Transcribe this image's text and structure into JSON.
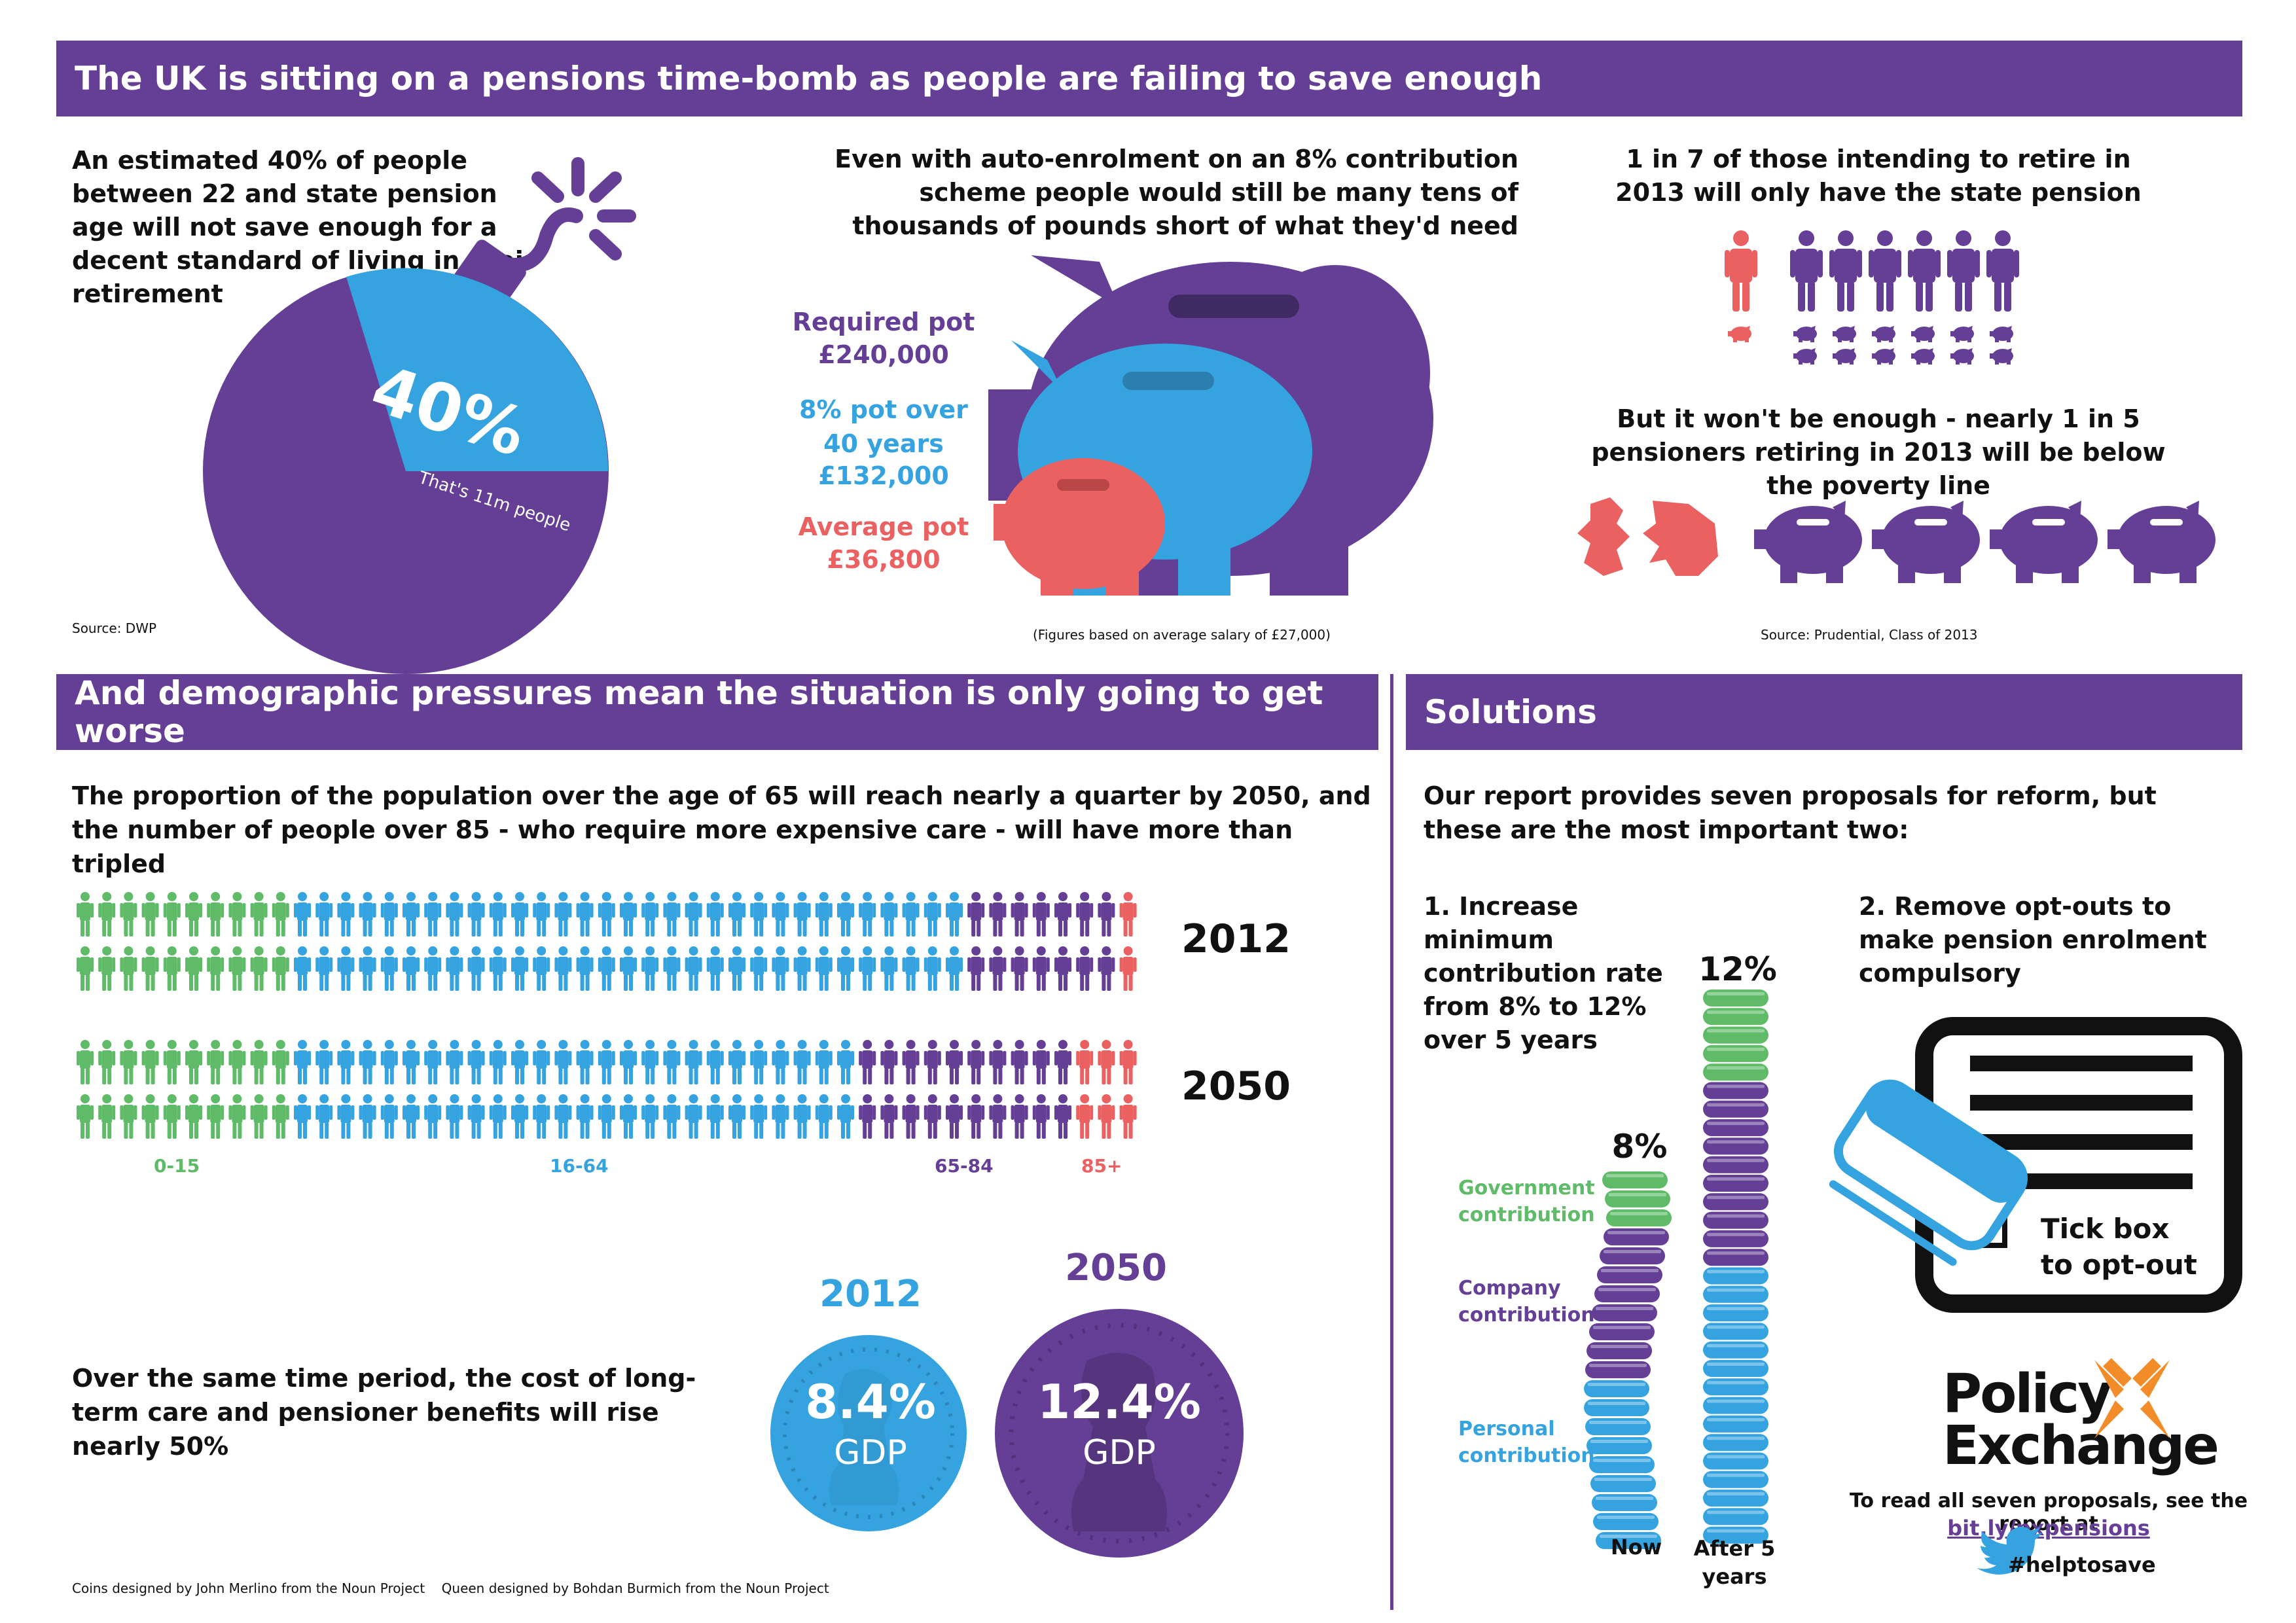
{
  "colors": {
    "purple": "#643f95",
    "blue": "#35a3df",
    "red": "#eb6161",
    "green": "#5fbb68",
    "dark": "#111111"
  },
  "section1": {
    "title": "The UK is sitting on a pensions time-bomb as people are failing to save enough",
    "bomb": {
      "text": "An estimated 40% of people between 22 and state pension age will not save enough for a decent standard of living in their retirement",
      "percent": "40%",
      "percent_value": 40,
      "sub": "That's 11m people",
      "source": "Source: DWP",
      "icon": "bomb-icon"
    },
    "pots": {
      "text": "Even with auto-enrolment on an 8% contribution scheme people would still be many tens of thousands of pounds short of what they'd need",
      "required_label": "Required pot",
      "required_value": "£240,000",
      "eight_label": "8% pot over 40 years",
      "eight_value": "£132,000",
      "average_label": "Average pot",
      "average_value": "£36,800",
      "note": "(Figures based on average salary of £27,000)",
      "icon": "piggy-bank-icon"
    },
    "state": {
      "text1": "1 in 7 of those intending to retire in 2013 will only have the state pension",
      "text2": "But it won't be enough - nearly 1 in 5 pensioners retiring in 2013 will be below the poverty line",
      "source": "Source: Prudential, Class of 2013",
      "icon": "person-icon"
    }
  },
  "section2": {
    "title": "And demographic pressures mean the situation is only going to get worse",
    "text": "The proportion of the population over the age of 65 will reach nearly a quarter by 2050, and the number of people over 85 - who require more expensive care - will have more than tripled",
    "year1": "2012",
    "year2": "2050",
    "rows": [
      {
        "year": "2012",
        "counts": [
          10,
          31,
          7,
          1
        ]
      },
      {
        "year": "2050",
        "counts": [
          10,
          26,
          10,
          3
        ]
      }
    ],
    "groups": [
      "0-15",
      "16-64",
      "65-84",
      "85+"
    ],
    "cost_text": "Over the same time period, the cost of long-term care and pensioner benefits will rise nearly 50%",
    "coin1": {
      "year": "2012",
      "value": "8.4%",
      "unit": "GDP"
    },
    "coin2": {
      "year": "2050",
      "value": "12.4%",
      "unit": "GDP"
    },
    "credits": "Coins designed by John Merlino from the Noun Project    Queen designed by Bohdan Burmich from the Noun Project"
  },
  "section3": {
    "title": "Solutions",
    "intro": "Our report provides seven proposals for reform, but these are the most important two:",
    "p1": "1. Increase minimum contribution rate from 8% to 12% over 5 years",
    "p2": "2. Remove opt-outs to make pension enrolment compulsory",
    "gov": "Government contribution",
    "company": "Company contribution",
    "personal": "Personal contribution",
    "pct_now": "8%",
    "pct_after": "12%",
    "now": "Now",
    "after": "After 5 years",
    "tick": "Tick box to opt-out",
    "logo1": "Policy",
    "logo2": "Exchange",
    "read": "To read all seven proposals, see the report at",
    "link": "bit.ly/pxpensions",
    "hashtag": "#helptosave"
  }
}
